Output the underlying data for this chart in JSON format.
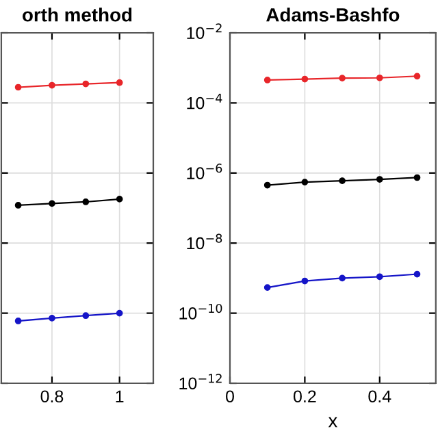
{
  "chart_data": [
    {
      "type": "line",
      "title": "orth method",
      "log": "y",
      "grid": true,
      "marker": "circle",
      "line_style": "solid",
      "tick_labels": "x",
      "xlim": [
        0.65,
        1.1
      ],
      "xticks": [
        0.8,
        1
      ],
      "ylim": [
        1e-12,
        0.01
      ],
      "yticks": [
        {
          "value": 1e-12,
          "label": null
        },
        {
          "value": 1e-10,
          "label": null
        },
        {
          "value": 1e-08,
          "label": null
        },
        {
          "value": 1e-06,
          "label": null
        },
        {
          "value": 0.0001,
          "label": null
        },
        {
          "value": 0.01,
          "label": null
        }
      ],
      "x": [
        0.7,
        0.8,
        0.9,
        1.0
      ],
      "series": [
        {
          "color": "#e8262a",
          "values": [
            0.00028,
            0.00032,
            0.00035,
            0.00038
          ]
        },
        {
          "color": "#000000",
          "values": [
            1.2e-07,
            1.35e-07,
            1.5e-07,
            1.8e-07
          ]
        },
        {
          "color": "#1515c8",
          "values": [
            6e-11,
            7.2e-11,
            8.5e-11,
            1e-10
          ]
        }
      ]
    },
    {
      "type": "line",
      "title": "Adams-Bashfo",
      "xlabel": "x",
      "log": "y",
      "grid": true,
      "marker": "circle",
      "line_style": "solid",
      "xlim": [
        0,
        0.55
      ],
      "xticks": [
        0,
        0.2,
        0.4
      ],
      "ylim": [
        1e-12,
        0.01
      ],
      "yticks": [
        {
          "value": 1e-12,
          "label": "10$^{−12}$"
        },
        {
          "value": 1e-10,
          "label": "10$^{−10}$"
        },
        {
          "value": 1e-08,
          "label": "10$^{−8}$"
        },
        {
          "value": 1e-06,
          "label": "10$^{−6}$"
        },
        {
          "value": 0.0001,
          "label": "10$^{−4}$"
        },
        {
          "value": 0.01,
          "label": "10$^{−2}$"
        }
      ],
      "x": [
        0.1,
        0.2,
        0.3,
        0.4,
        0.5
      ],
      "series": [
        {
          "color": "#e8262a",
          "values": [
            0.00045,
            0.00048,
            0.00051,
            0.00052,
            0.00058
          ]
        },
        {
          "color": "#000000",
          "values": [
            4.5e-07,
            5.5e-07,
            6e-07,
            6.6e-07,
            7.4e-07
          ]
        },
        {
          "color": "#1515c8",
          "values": [
            5.4e-10,
            8.3e-10,
            1e-09,
            1.1e-09,
            1.3e-09
          ]
        }
      ]
    }
  ]
}
